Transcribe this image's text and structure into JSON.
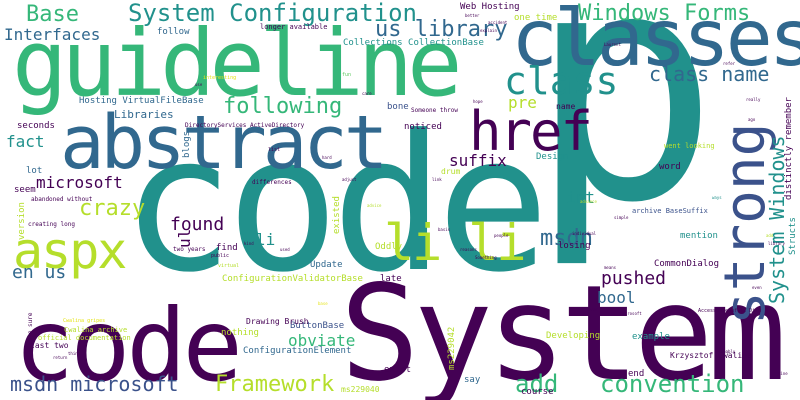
{
  "palette": {
    "dark_purple": "#440154",
    "indigo": "#3b528b",
    "blue": "#31688e",
    "teal": "#21918c",
    "green": "#35b779",
    "bright_green": "#5ec962",
    "yellow_green": "#b5de2b",
    "yellow": "#e5e419"
  },
  "words": [
    {
      "text": "p",
      "color": "#21918c"
    },
    {
      "text": "code",
      "color": "#21918c"
    },
    {
      "text": "System",
      "color": "#440154"
    },
    {
      "text": "code",
      "color": "#440154"
    },
    {
      "text": "guideline",
      "color": "#35b779"
    },
    {
      "text": "classes",
      "color": "#31688e"
    },
    {
      "text": "abstract",
      "color": "#31688e"
    },
    {
      "text": "strong",
      "color": "#3b528b"
    },
    {
      "text": "href",
      "color": "#440154"
    },
    {
      "text": "aspx",
      "color": "#b5de2b"
    },
    {
      "text": "li li",
      "color": "#b5de2b"
    },
    {
      "text": "class",
      "color": "#21918c"
    },
    {
      "text": "System Configuration",
      "color": "#21918c"
    },
    {
      "text": "Windows Forms",
      "color": "#35b779"
    },
    {
      "text": "Base",
      "color": "#35b779"
    },
    {
      "text": "System Windows",
      "color": "#21918c"
    },
    {
      "text": "Framework",
      "color": "#b5de2b"
    },
    {
      "text": "convention",
      "color": "#35b779"
    },
    {
      "text": "msdn microsoft",
      "color": "#3b528b"
    },
    {
      "text": "following",
      "color": "#35b779"
    },
    {
      "text": "class name",
      "color": "#31688e"
    },
    {
      "text": "us library",
      "color": "#31688e"
    },
    {
      "text": "crazy",
      "color": "#b5de2b"
    },
    {
      "text": "msdn",
      "color": "#31688e"
    },
    {
      "text": "add",
      "color": "#35b779"
    },
    {
      "text": "found",
      "color": "#440154"
    },
    {
      "text": "en us",
      "color": "#31688e"
    },
    {
      "text": "pushed",
      "color": "#440154"
    },
    {
      "text": "Interfaces",
      "color": "#31688e"
    },
    {
      "text": "microsoft",
      "color": "#440154"
    },
    {
      "text": "obviate",
      "color": "#35b779"
    },
    {
      "text": "fact",
      "color": "#21918c"
    },
    {
      "text": "suffix",
      "color": "#440154"
    },
    {
      "text": "bool",
      "color": "#31688e"
    },
    {
      "text": "pre",
      "color": "#b5de2b"
    },
    {
      "text": "int",
      "color": "#21918c"
    },
    {
      "text": "ul",
      "color": "#440154"
    },
    {
      "text": "li",
      "color": "#21918c"
    },
    {
      "text": "Libraries",
      "color": "#31688e"
    },
    {
      "text": "Hosting VirtualFileBase",
      "color": "#31688e"
    },
    {
      "text": "Collections CollectionBase",
      "color": "#21918c"
    },
    {
      "text": "Web Hosting",
      "color": "#440154"
    },
    {
      "text": "Oddly",
      "color": "#b5de2b"
    },
    {
      "text": "Design",
      "color": "#21918c"
    },
    {
      "text": "Developing",
      "color": "#b5de2b"
    },
    {
      "text": "ConfigurationValidatorBase",
      "color": "#b5de2b"
    },
    {
      "text": "ConfigurationElement",
      "color": "#31688e"
    },
    {
      "text": "ButtonBase",
      "color": "#3b528b"
    },
    {
      "text": "CommonDialog",
      "color": "#440154"
    },
    {
      "text": "losing",
      "color": "#440154"
    },
    {
      "text": "example",
      "color": "#21918c"
    },
    {
      "text": "mention",
      "color": "#21918c"
    },
    {
      "text": "Update",
      "color": "#31688e"
    },
    {
      "text": "late",
      "color": "#440154"
    },
    {
      "text": "nothing",
      "color": "#b5de2b"
    },
    {
      "text": "exist",
      "color": "#440154"
    },
    {
      "text": "word",
      "color": "#440154"
    },
    {
      "text": "find",
      "color": "#440154"
    },
    {
      "text": "seconds",
      "color": "#440154"
    },
    {
      "text": "noticed",
      "color": "#440154"
    },
    {
      "text": "bone",
      "color": "#3b528b"
    },
    {
      "text": "follow",
      "color": "#31688e"
    },
    {
      "text": "one time",
      "color": "#b5de2b"
    },
    {
      "text": "longer available",
      "color": "#440154"
    },
    {
      "text": "lot",
      "color": "#31688e"
    },
    {
      "text": "seem",
      "color": "#440154"
    },
    {
      "text": "version",
      "color": "#b5de2b"
    },
    {
      "text": "blogs",
      "color": "#31688e"
    },
    {
      "text": "existed",
      "color": "#b5de2b"
    },
    {
      "text": "say",
      "color": "#31688e"
    },
    {
      "text": "course",
      "color": "#440154"
    },
    {
      "text": "end",
      "color": "#440154"
    },
    {
      "text": "ms229042",
      "color": "#b5de2b"
    },
    {
      "text": "ms229040",
      "color": "#b5de2b"
    },
    {
      "text": "Drawing Brush",
      "color": "#440154"
    },
    {
      "text": "last two",
      "color": "#440154"
    },
    {
      "text": "Structs",
      "color": "#21918c"
    },
    {
      "text": "distinctly remember",
      "color": "#440154"
    },
    {
      "text": "went looking",
      "color": "#b5de2b"
    },
    {
      "text": "archive BaseSuffix",
      "color": "#3b528b"
    },
    {
      "text": "Krzysztof Cwalina",
      "color": "#440154"
    },
    {
      "text": "Cwalina archive",
      "color": "#b5de2b"
    },
    {
      "text": "official documentation",
      "color": "#b5de2b"
    },
    {
      "text": "abandoned without",
      "color": "#440154"
    },
    {
      "text": "creating long",
      "color": "#440154"
    },
    {
      "text": "make sure",
      "color": "#440154"
    },
    {
      "text": "drum",
      "color": "#b5de2b"
    },
    {
      "text": "name",
      "color": "#440154"
    },
    {
      "text": "Someone throw",
      "color": "#440154"
    },
    {
      "text": "DirectoryServices ActiveDirectory",
      "color": "#440154"
    },
    {
      "text": "differences",
      "color": "#440154"
    },
    {
      "text": "two years",
      "color": "#440154"
    },
    {
      "text": "public",
      "color": "#440154"
    },
    {
      "text": "virtual",
      "color": "#b5de2b"
    },
    {
      "text": "Cwalina gripes",
      "color": "#e5e419"
    },
    {
      "text": "simple",
      "color": "#440154"
    },
    {
      "text": "people",
      "color": "#440154"
    },
    {
      "text": "individual",
      "color": "#440154"
    },
    {
      "text": "library",
      "color": "#440154"
    },
    {
      "text": "basis",
      "color": "#440154"
    },
    {
      "text": "reasons",
      "color": "#440154"
    },
    {
      "text": "hope",
      "color": "#440154"
    },
    {
      "text": "fun",
      "color": "#5ec962"
    },
    {
      "text": "care",
      "color": "#440154"
    },
    {
      "text": "really",
      "color": "#440154"
    },
    {
      "text": "Something",
      "color": "#440154"
    },
    {
      "text": "AccessBaseSuffix Dire",
      "color": "#440154"
    },
    {
      "text": "explain",
      "color": "#440154"
    },
    {
      "text": "refer",
      "color": "#440154"
    },
    {
      "text": "accident",
      "color": "#440154"
    },
    {
      "text": "better",
      "color": "#440154"
    },
    {
      "text": "Laurent",
      "color": "#440154"
    },
    {
      "text": "thing",
      "color": "#440154"
    },
    {
      "text": "return",
      "color": "#440154"
    },
    {
      "text": "advice",
      "color": "#b5de2b"
    },
    {
      "text": "ago",
      "color": "#440154"
    },
    {
      "text": "interesting",
      "color": "#e5e419"
    },
    {
      "text": "use",
      "color": "#440154"
    },
    {
      "text": "fine",
      "color": "#440154"
    },
    {
      "text": "add",
      "color": "#b5de2b"
    },
    {
      "text": "list",
      "color": "#440154"
    },
    {
      "text": "base",
      "color": "#e5e419"
    },
    {
      "text": "adjust",
      "color": "#440154"
    },
    {
      "text": "ways",
      "color": "#21918c"
    },
    {
      "text": "Microsoft",
      "color": "#440154"
    },
    {
      "text": "sure",
      "color": "#440154"
    },
    {
      "text": "ever",
      "color": "#440154"
    },
    {
      "text": "even",
      "color": "#440154"
    },
    {
      "text": "probably",
      "color": "#440154"
    },
    {
      "text": "advance",
      "color": "#b5de2b"
    },
    {
      "text": "link",
      "color": "#440154"
    },
    {
      "text": "means",
      "color": "#440154"
    },
    {
      "text": "kind",
      "color": "#440154"
    },
    {
      "text": "used",
      "color": "#440154"
    },
    {
      "text": "hard",
      "color": "#440154"
    },
    {
      "text": "talk",
      "color": "#440154"
    }
  ]
}
